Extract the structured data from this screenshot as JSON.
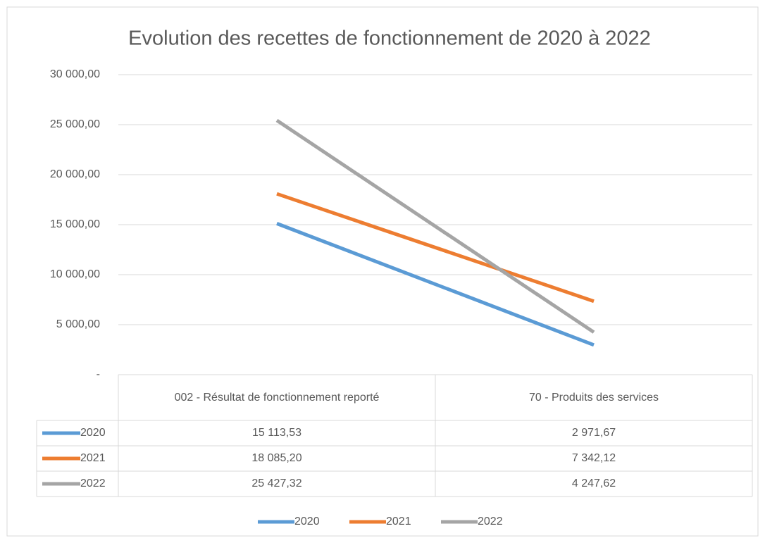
{
  "chart_data": {
    "type": "line",
    "title": "Evolution des recettes de fonctionnement de 2020 à 2022",
    "categories": [
      "002 - Résultat de fonctionnement reporté",
      "70 - Produits des services"
    ],
    "series": [
      {
        "name": "2020",
        "color": "#5b9bd5",
        "values": [
          15113.53,
          2971.67
        ],
        "value_labels": [
          "15 113,53",
          "2 971,67"
        ]
      },
      {
        "name": "2021",
        "color": "#ed7d31",
        "values": [
          18085.2,
          7342.12
        ],
        "value_labels": [
          "18 085,20",
          "7 342,12"
        ]
      },
      {
        "name": "2022",
        "color": "#a5a5a5",
        "values": [
          25427.32,
          4247.62
        ],
        "value_labels": [
          "25 427,32",
          "4 247,62"
        ]
      }
    ],
    "ylim": [
      0,
      30000
    ],
    "yticks": [
      {
        "value": 0,
        "label": "-"
      },
      {
        "value": 5000,
        "label": "5 000,00"
      },
      {
        "value": 10000,
        "label": "10 000,00"
      },
      {
        "value": 15000,
        "label": "15 000,00"
      },
      {
        "value": 20000,
        "label": "20 000,00"
      },
      {
        "value": 25000,
        "label": "25 000,00"
      },
      {
        "value": 30000,
        "label": "30 000,00"
      }
    ],
    "grid": true,
    "legend": "bottom",
    "data_table": true
  }
}
